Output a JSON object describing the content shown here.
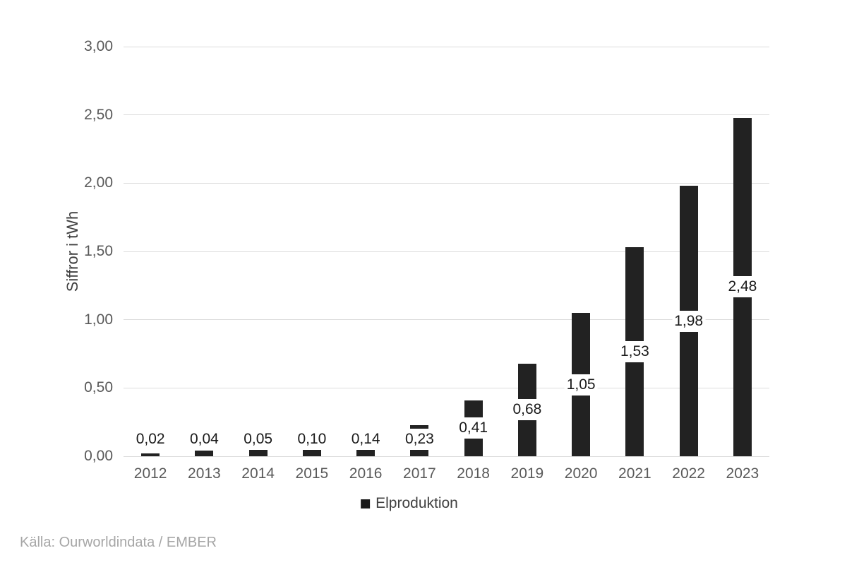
{
  "chart_data": {
    "type": "bar",
    "title": "",
    "categories": [
      "2012",
      "2013",
      "2014",
      "2015",
      "2016",
      "2017",
      "2018",
      "2019",
      "2020",
      "2021",
      "2022",
      "2023"
    ],
    "series": [
      {
        "name": "Elproduktion",
        "values": [
          0.02,
          0.04,
          0.05,
          0.1,
          0.14,
          0.23,
          0.41,
          0.68,
          1.05,
          1.53,
          1.98,
          2.48
        ],
        "value_labels": [
          "0,02",
          "0,04",
          "0,05",
          "0,10",
          "0,14",
          "0,23",
          "0,41",
          "0,68",
          "1,05",
          "1,53",
          "1,98",
          "2,48"
        ]
      }
    ],
    "xlabel": "",
    "ylabel": "Siffror i tWh",
    "ylim": [
      0,
      3
    ],
    "yticks": {
      "values": [
        0,
        0.5,
        1,
        1.5,
        2,
        2.5,
        3
      ],
      "labels": [
        "0,00",
        "0,50",
        "1,00",
        "1,50",
        "2,00",
        "2,50",
        "3,00"
      ]
    },
    "grid": true,
    "bar_color": "#222222",
    "legend": {
      "position": "bottom",
      "entries": [
        {
          "label": "Elproduktion",
          "color": "#1a1a1a"
        }
      ]
    }
  },
  "source": {
    "text": "Källa: Ourworldindata / EMBER"
  },
  "colors": {
    "background": "#ffffff",
    "gridline": "#dcdcdc",
    "bar": "#222222",
    "axis_text": "#595959",
    "data_label_text": "#1a1a1a",
    "legend_text": "#404040",
    "source_text": "#a6a6a6"
  }
}
